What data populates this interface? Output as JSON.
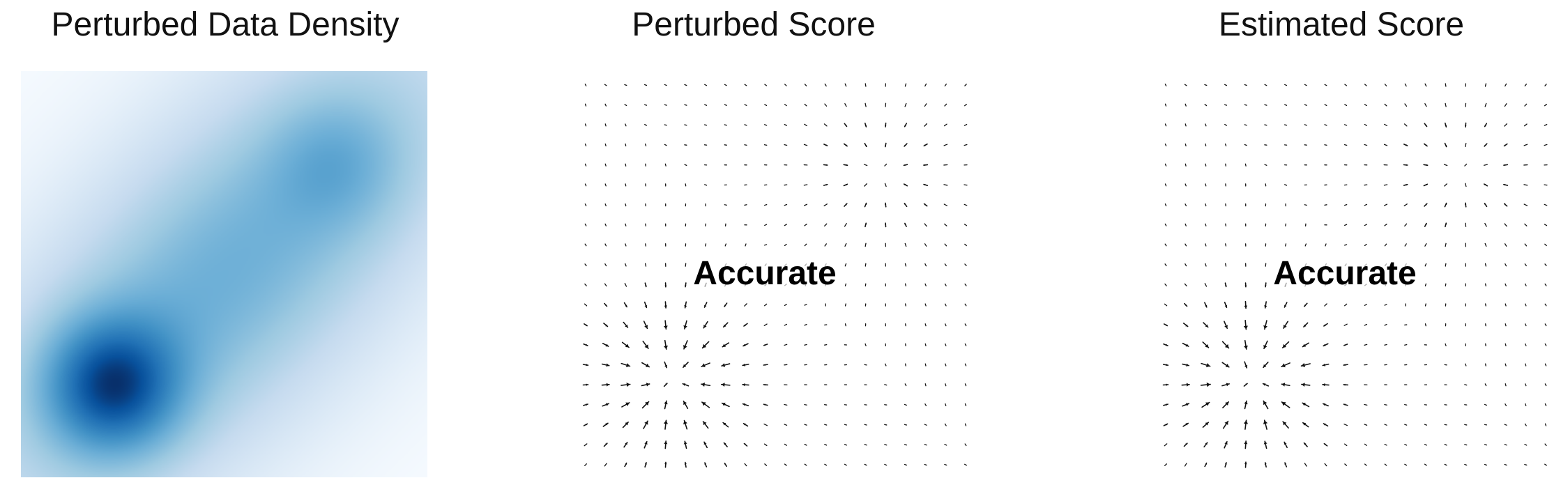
{
  "panels": [
    {
      "title": "Perturbed Data Density"
    },
    {
      "title": "Perturbed Score",
      "annotation": "Accurate"
    },
    {
      "title": "Estimated Score",
      "annotation": "Accurate"
    }
  ],
  "colors": {
    "cmap_low": "#f7fbff",
    "cmap_mid": "#6baed6",
    "cmap_high": "#08306b",
    "arrow": "#111111"
  },
  "chart_data": [
    {
      "type": "heatmap",
      "title": "Perturbed Data Density",
      "colormap": "Blues",
      "xlim": [
        -1,
        1
      ],
      "ylim": [
        -1,
        1
      ],
      "gaussian_mixture": [
        {
          "weight": 0.8,
          "mean": [
            -0.55,
            -0.55
          ],
          "sd": 0.22
        },
        {
          "weight": 0.2,
          "mean": [
            0.55,
            0.55
          ],
          "sd": 0.22
        }
      ],
      "background_spread_sd": 0.9
    },
    {
      "type": "quiver",
      "title": "Perturbed Score",
      "grid": [
        20,
        20
      ],
      "xlim": [
        -1,
        1
      ],
      "ylim": [
        -1,
        1
      ],
      "field": "score of Gaussian mixture",
      "annotation": "Accurate"
    },
    {
      "type": "quiver",
      "title": "Estimated Score",
      "grid": [
        20,
        20
      ],
      "xlim": [
        -1,
        1
      ],
      "ylim": [
        -1,
        1
      ],
      "field": "estimated score of Gaussian mixture",
      "annotation": "Accurate"
    }
  ]
}
